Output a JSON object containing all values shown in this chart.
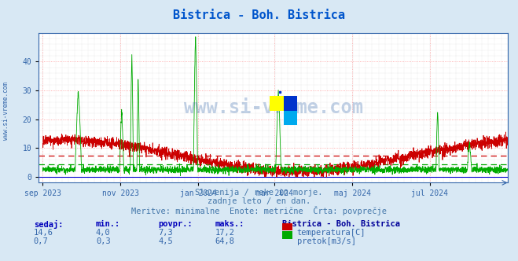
{
  "title": "Bistrica - Boh. Bistrica",
  "title_color": "#0055cc",
  "background_color": "#d8e8f4",
  "plot_bg_color": "#ffffff",
  "grid_color_major": "#ff9999",
  "grid_color_minor": "#ddcccc",
  "temp_color": "#cc0000",
  "flow_color": "#00aa00",
  "axis_color": "#3366aa",
  "ylim_min": -2,
  "ylim_max": 50,
  "yticks": [
    0,
    10,
    20,
    30,
    40
  ],
  "x_labels": [
    "sep 2023",
    "nov 2023",
    "jan 2024",
    "mar 2024",
    "maj 2024",
    "jul 2024"
  ],
  "x_positions": [
    0,
    61,
    122,
    182,
    243,
    304
  ],
  "xlim_min": -3,
  "xlim_max": 365,
  "subtitle1": "Slovenija / reke in morje.",
  "subtitle2": "zadnje leto / en dan.",
  "subtitle3": "Meritve: minimalne  Enote: metrične  Črta: povprečje",
  "subtitle_color": "#4477aa",
  "table_header_color": "#0000bb",
  "table_value_color": "#3366aa",
  "legend_title": "Bistrica - Boh. Bistrica",
  "legend_title_color": "#000099",
  "temp_avg": 7.3,
  "flow_avg": 4.5,
  "watermark": "www.si-vreme.com",
  "watermark_color": "#3366aa",
  "left_label": "www.si-vreme.com",
  "left_label_color": "#3366aa",
  "temp_vals": [
    "14,6",
    "4,0",
    "7,3",
    "17,2"
  ],
  "flow_vals": [
    "0,7",
    "0,3",
    "4,5",
    "64,8"
  ],
  "col_headers": [
    "sedaj:",
    "min.:",
    "povpr.:",
    "maks.:"
  ],
  "temp_label": "temperatura[C]",
  "flow_label": "pretok[m3/s]",
  "logo_yellow": "#ffff00",
  "logo_blue": "#0033cc",
  "logo_cyan": "#00aaee"
}
